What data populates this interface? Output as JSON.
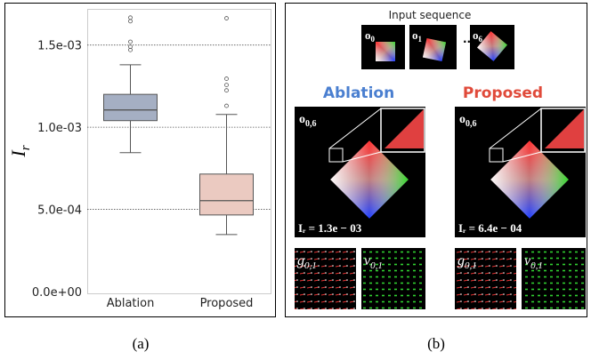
{
  "chart_data": {
    "type": "box",
    "y_label": {
      "main": "I",
      "sub": "r"
    },
    "categories": [
      "Ablation",
      "Proposed"
    ],
    "colors": [
      "#a5afc3",
      "#ebcac1"
    ],
    "boxes": [
      {
        "whislo": 0.000845,
        "q1": 0.00104,
        "med": 0.001105,
        "q3": 0.0012,
        "whishi": 0.00138,
        "fliers": [
          0.00147,
          0.00149,
          0.00152,
          0.001645,
          0.001667
        ]
      },
      {
        "whislo": 0.000347,
        "q1": 0.000466,
        "med": 0.000553,
        "q3": 0.000715,
        "whishi": 0.001078,
        "fliers": [
          0.00113,
          0.001224,
          0.001257,
          0.001295,
          0.001663
        ]
      }
    ],
    "ylim": [
      0,
      0.00172
    ],
    "yticks": [
      {
        "value": 0,
        "label": "0.0e+00"
      },
      {
        "value": 0.0005,
        "label": "5.0e-04"
      },
      {
        "value": 0.001,
        "label": "1.0e-03"
      },
      {
        "value": 0.0015,
        "label": "1.5e-03"
      }
    ],
    "grid": true
  },
  "captions": [
    "(a)",
    "(b)"
  ],
  "panel_b": {
    "input_title": "Input sequence",
    "inputs": [
      {
        "main": "o",
        "sub": "0"
      },
      {
        "main": "o",
        "sub": "1"
      },
      {
        "main": "o",
        "sub": "6"
      }
    ],
    "ellipsis": "...",
    "methods": [
      {
        "name": "Ablation",
        "image_label": {
          "main": "o",
          "sub": "0,6"
        },
        "metric": "Iᵣ = 1.3e − 03",
        "g_label": {
          "main": "g",
          "sub": "0,1"
        },
        "v_label": {
          "main": "v",
          "sub": "0,1"
        }
      },
      {
        "name": "Proposed",
        "image_label": {
          "main": "o",
          "sub": "0,6"
        },
        "metric": "Iᵣ = 6.4e − 04",
        "g_label": {
          "main": "g",
          "sub": "0,1"
        },
        "v_label": {
          "main": "v",
          "sub": "0,1"
        }
      }
    ]
  }
}
